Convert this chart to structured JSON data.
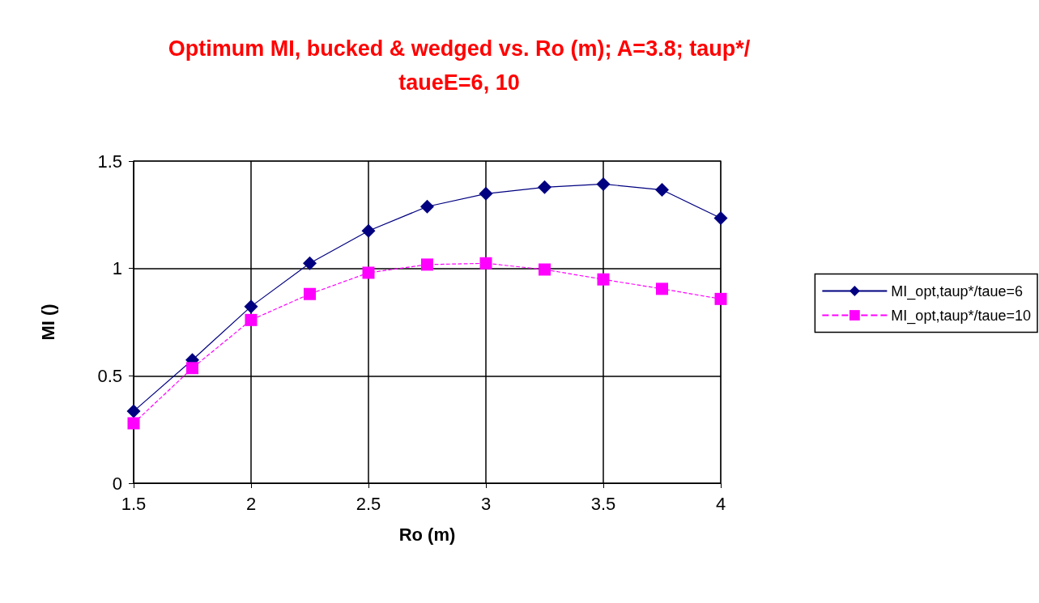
{
  "chart_data": {
    "type": "line",
    "title": "Optimum MI, bucked & wedged vs. Ro (m); A=3.8; taup*/taueE=6, 10",
    "xlabel": "Ro (m)",
    "ylabel": "MI ()",
    "x": [
      1.5,
      1.75,
      2,
      2.25,
      2.5,
      2.75,
      3,
      3.25,
      3.5,
      3.75,
      4
    ],
    "series": [
      {
        "name": "MI_opt,taup*/taue=6",
        "color": "#000080",
        "marker": "diamond",
        "line_style": "solid",
        "values": [
          0.335,
          0.574,
          0.823,
          1.024,
          1.175,
          1.288,
          1.348,
          1.378,
          1.393,
          1.366,
          1.234
        ]
      },
      {
        "name": "MI_opt,taup*/taue=10",
        "color": "#ff00ff",
        "marker": "square",
        "line_style": "dashed",
        "values": [
          0.279,
          0.536,
          0.76,
          0.881,
          0.98,
          1.018,
          1.024,
          0.995,
          0.949,
          0.905,
          0.858
        ]
      }
    ],
    "xlim": [
      1.5,
      4
    ],
    "xticks": [
      1.5,
      2,
      2.5,
      3,
      3.5,
      4
    ],
    "ylim": [
      0,
      1.5
    ],
    "yticks": [
      0,
      0.5,
      1,
      1.5
    ],
    "grid": true,
    "legend": "right"
  }
}
